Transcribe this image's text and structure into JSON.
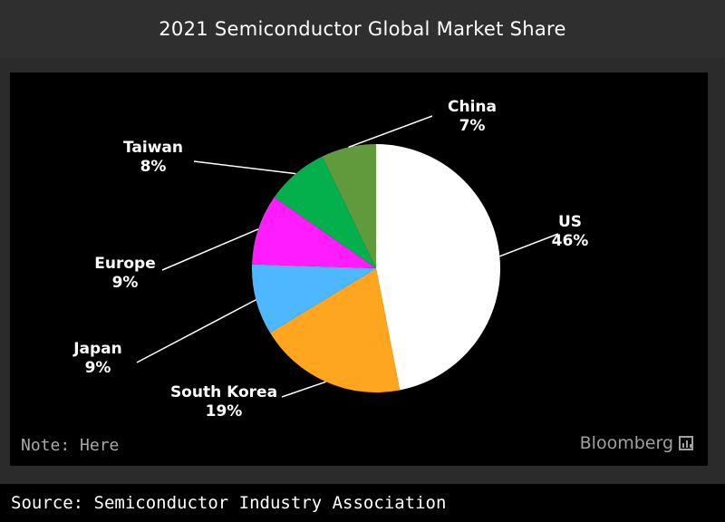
{
  "header": {
    "title": "2021 Semiconductor Global Market Share"
  },
  "note": "Note: Here",
  "brand": {
    "name": "Bloomberg",
    "icon": "bloomberg-logo-icon"
  },
  "footer": {
    "source": "Source: Semiconductor Industry Association"
  },
  "colors": {
    "US": "#ffffff",
    "South Korea": "#ffa51f",
    "Japan": "#4db8ff",
    "Europe": "#ff1cff",
    "Taiwan": "#04b04b",
    "China": "#619a3c"
  },
  "chart_data": {
    "type": "pie",
    "title": "2021 Semiconductor Global Market Share",
    "start": "12 o'clock",
    "direction": "clockwise",
    "slices": [
      {
        "label": "US",
        "value": 46,
        "display": "46%"
      },
      {
        "label": "South Korea",
        "value": 19,
        "display": "19%"
      },
      {
        "label": "Japan",
        "value": 9,
        "display": "9%"
      },
      {
        "label": "Europe",
        "value": 9,
        "display": "9%"
      },
      {
        "label": "Taiwan",
        "value": 8,
        "display": "8%"
      },
      {
        "label": "China",
        "value": 7,
        "display": "7%"
      }
    ]
  }
}
